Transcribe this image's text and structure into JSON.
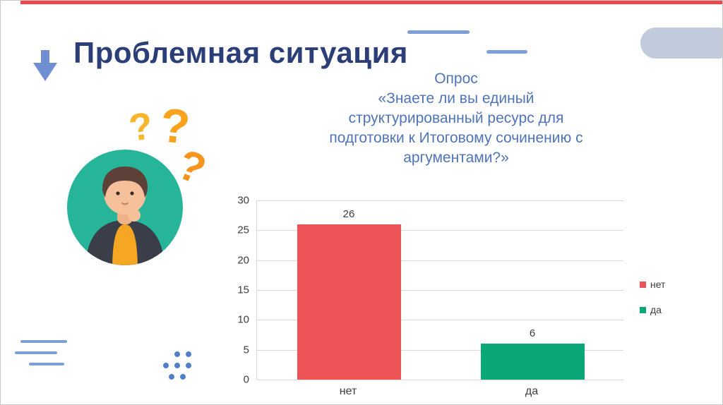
{
  "slide": {
    "title": "Проблемная ситуация"
  },
  "survey": {
    "lines": [
      "Опрос",
      "«Знаете ли вы единый",
      "структурированный ресурс для",
      "подготовки к Итоговому сочинению с",
      "аргументами?»"
    ]
  },
  "decor": {
    "question_marks": [
      "?",
      "?",
      "?"
    ]
  },
  "chart_data": {
    "type": "bar",
    "title": "",
    "xlabel": "",
    "ylabel": "",
    "categories": [
      "нет",
      "да"
    ],
    "values": [
      26,
      6
    ],
    "bar_colors": [
      "#eb5356",
      "#0aa878"
    ],
    "ylim": [
      0,
      30
    ],
    "yticks": [
      0,
      5,
      10,
      15,
      20,
      25,
      30
    ],
    "grid": true,
    "legend_position": "right",
    "legend": [
      {
        "label": "нет",
        "color": "#eb5356"
      },
      {
        "label": "да",
        "color": "#0aa878"
      }
    ]
  },
  "colors": {
    "accent_red": "#e9484c",
    "title_navy": "#2c3e78",
    "text_blue": "#4f74b8",
    "decor_blue": "#7b9fd6",
    "pill_gray": "#c2cbdc",
    "circle_teal": "#27b59a",
    "question_orange": "#f9a21b"
  }
}
